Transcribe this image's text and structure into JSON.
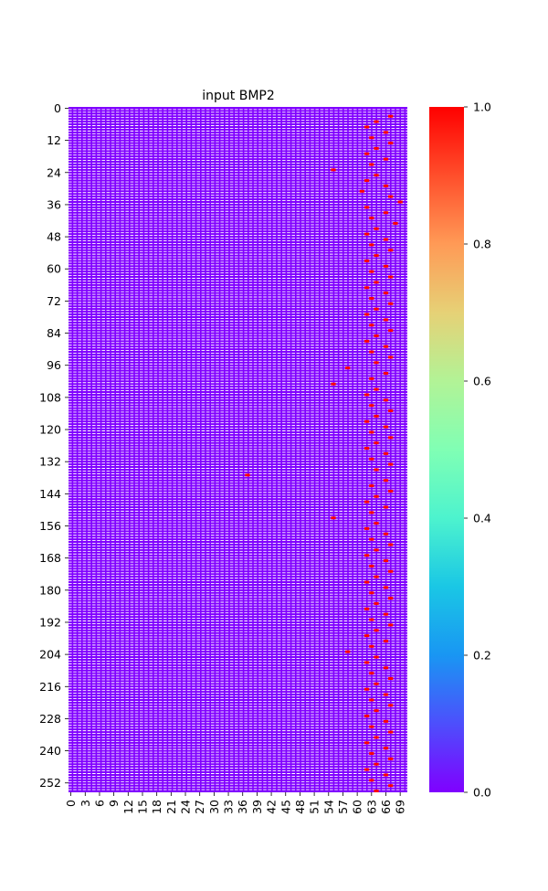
{
  "chart_data": {
    "type": "heatmap",
    "title": "input BMP2",
    "rows": 256,
    "cols": 71,
    "value_range": [
      0,
      1
    ],
    "x_tick_labels": [
      "0",
      "3",
      "6",
      "9",
      "12",
      "15",
      "18",
      "21",
      "24",
      "27",
      "30",
      "33",
      "36",
      "39",
      "42",
      "45",
      "48",
      "51",
      "54",
      "57",
      "60",
      "63",
      "66",
      "69"
    ],
    "y_tick_labels": [
      "0",
      "12",
      "24",
      "36",
      "48",
      "60",
      "72",
      "84",
      "96",
      "108",
      "120",
      "132",
      "144",
      "156",
      "168",
      "180",
      "192",
      "204",
      "216",
      "228",
      "240",
      "252"
    ],
    "colorbar": {
      "ticks": [
        "0.0",
        "0.2",
        "0.4",
        "0.6",
        "0.8",
        "1.0"
      ],
      "colormap": "rainbow"
    },
    "background_value": 0,
    "cell_value_high": 1,
    "row_pattern_note": "one-hot encoded sequence: most cells 0, one red cell (value 1) per row at varying columns",
    "hot_cells": [
      [
        3,
        67
      ],
      [
        5,
        64
      ],
      [
        7,
        62
      ],
      [
        9,
        66
      ],
      [
        11,
        63
      ],
      [
        13,
        67
      ],
      [
        15,
        64
      ],
      [
        17,
        62
      ],
      [
        19,
        66
      ],
      [
        21,
        63
      ],
      [
        23,
        55
      ],
      [
        25,
        64
      ],
      [
        27,
        62
      ],
      [
        29,
        66
      ],
      [
        31,
        61
      ],
      [
        33,
        67
      ],
      [
        35,
        69
      ],
      [
        37,
        62
      ],
      [
        39,
        66
      ],
      [
        41,
        63
      ],
      [
        43,
        68
      ],
      [
        45,
        64
      ],
      [
        47,
        62
      ],
      [
        49,
        66
      ],
      [
        51,
        63
      ],
      [
        53,
        67
      ],
      [
        55,
        64
      ],
      [
        57,
        62
      ],
      [
        59,
        66
      ],
      [
        61,
        63
      ],
      [
        63,
        67
      ],
      [
        65,
        64
      ],
      [
        67,
        62
      ],
      [
        69,
        66
      ],
      [
        71,
        63
      ],
      [
        73,
        67
      ],
      [
        75,
        64
      ],
      [
        77,
        62
      ],
      [
        79,
        66
      ],
      [
        81,
        63
      ],
      [
        83,
        67
      ],
      [
        85,
        64
      ],
      [
        87,
        62
      ],
      [
        89,
        66
      ],
      [
        91,
        63
      ],
      [
        93,
        67
      ],
      [
        95,
        64
      ],
      [
        97,
        58
      ],
      [
        99,
        66
      ],
      [
        101,
        63
      ],
      [
        103,
        55
      ],
      [
        105,
        64
      ],
      [
        107,
        62
      ],
      [
        109,
        66
      ],
      [
        111,
        63
      ],
      [
        113,
        67
      ],
      [
        115,
        64
      ],
      [
        117,
        62
      ],
      [
        119,
        66
      ],
      [
        121,
        63
      ],
      [
        123,
        67
      ],
      [
        125,
        64
      ],
      [
        127,
        62
      ],
      [
        129,
        66
      ],
      [
        131,
        63
      ],
      [
        133,
        67
      ],
      [
        135,
        64
      ],
      [
        137,
        37
      ],
      [
        139,
        66
      ],
      [
        141,
        63
      ],
      [
        143,
        67
      ],
      [
        145,
        64
      ],
      [
        147,
        62
      ],
      [
        149,
        66
      ],
      [
        151,
        63
      ],
      [
        153,
        55
      ],
      [
        155,
        64
      ],
      [
        157,
        62
      ],
      [
        159,
        66
      ],
      [
        161,
        63
      ],
      [
        163,
        67
      ],
      [
        165,
        64
      ],
      [
        167,
        62
      ],
      [
        169,
        66
      ],
      [
        171,
        63
      ],
      [
        173,
        67
      ],
      [
        175,
        64
      ],
      [
        177,
        62
      ],
      [
        179,
        66
      ],
      [
        181,
        63
      ],
      [
        183,
        67
      ],
      [
        185,
        64
      ],
      [
        187,
        62
      ],
      [
        189,
        66
      ],
      [
        191,
        63
      ],
      [
        193,
        67
      ],
      [
        195,
        64
      ],
      [
        197,
        62
      ],
      [
        199,
        66
      ],
      [
        201,
        63
      ],
      [
        203,
        58
      ],
      [
        205,
        64
      ],
      [
        207,
        62
      ],
      [
        209,
        66
      ],
      [
        211,
        63
      ],
      [
        213,
        67
      ],
      [
        215,
        64
      ],
      [
        217,
        62
      ],
      [
        219,
        66
      ],
      [
        221,
        63
      ],
      [
        223,
        67
      ],
      [
        225,
        64
      ],
      [
        227,
        62
      ],
      [
        229,
        66
      ],
      [
        231,
        63
      ],
      [
        233,
        67
      ],
      [
        235,
        64
      ],
      [
        237,
        62
      ],
      [
        239,
        66
      ],
      [
        241,
        63
      ],
      [
        243,
        67
      ],
      [
        245,
        64
      ],
      [
        247,
        62
      ],
      [
        249,
        66
      ],
      [
        251,
        63
      ],
      [
        253,
        67
      ],
      [
        255,
        64
      ]
    ]
  }
}
